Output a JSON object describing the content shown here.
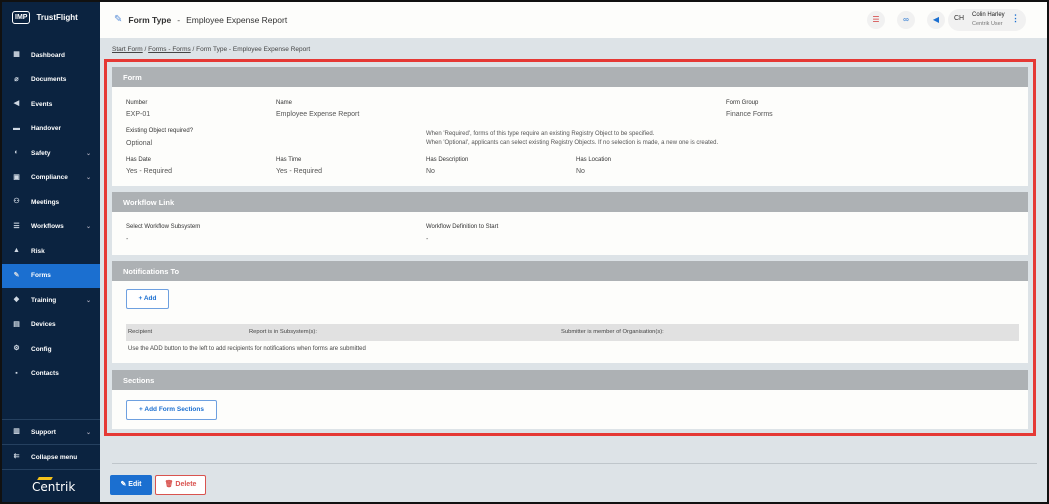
{
  "app": {
    "logo_mark": "IMP",
    "logo_text": "TrustFlight",
    "footer_brand": "Centrik"
  },
  "sidebar": {
    "items": [
      {
        "label": "Dashboard",
        "icon": "dashboard-icon",
        "glyph": "▦"
      },
      {
        "label": "Documents",
        "icon": "paperclip-icon",
        "glyph": "⌀"
      },
      {
        "label": "Events",
        "icon": "megaphone-icon",
        "glyph": "◀"
      },
      {
        "label": "Handover",
        "icon": "handover-icon",
        "glyph": "▬"
      },
      {
        "label": "Safety",
        "icon": "safety-icon",
        "glyph": "◐",
        "chevron": true
      },
      {
        "label": "Compliance",
        "icon": "compliance-icon",
        "glyph": "▣",
        "chevron": true
      },
      {
        "label": "Meetings",
        "icon": "meetings-icon",
        "glyph": "⚇"
      },
      {
        "label": "Workflows",
        "icon": "workflows-icon",
        "glyph": "☰",
        "chevron": true
      },
      {
        "label": "Risk",
        "icon": "risk-icon",
        "glyph": "▲"
      },
      {
        "label": "Forms",
        "icon": "forms-icon",
        "glyph": "✎",
        "active": true
      },
      {
        "label": "Training",
        "icon": "graduation-cap-icon",
        "glyph": "◆",
        "chevron": true
      },
      {
        "label": "Devices",
        "icon": "devices-icon",
        "glyph": "▤"
      },
      {
        "label": "Config",
        "icon": "config-icon",
        "glyph": "⚙"
      },
      {
        "label": "Contacts",
        "icon": "contacts-icon",
        "glyph": "▪"
      }
    ],
    "support": "Support",
    "collapse": "Collapse menu"
  },
  "header": {
    "title_prefix": "Form Type",
    "title_sep": "-",
    "title": "Employee Expense Report",
    "user": {
      "initials": "CH",
      "name": "Colin Harley",
      "role": "Centrik User"
    }
  },
  "breadcrumb": [
    "Start Form",
    "Forms - Forms",
    "Form Type - Employee Expense Report"
  ],
  "form": {
    "heading": "Form",
    "number_label": "Number",
    "number": "EXP-01",
    "name_label": "Name",
    "name": "Employee Expense Report",
    "group_label": "Form Group",
    "group": "Finance Forms",
    "existing_label": "Existing Object required?",
    "existing": "Optional",
    "existing_help1": "When 'Required', forms of this type require an existing Registry Object to be specified.",
    "existing_help2": "When 'Optional', applicants can select existing Registry Objects. If no selection is made, a new one is created.",
    "date_label": "Has Date",
    "date": "Yes - Required",
    "time_label": "Has Time",
    "time": "Yes - Required",
    "desc_label": "Has Description",
    "desc": "No",
    "loc_label": "Has Location",
    "loc": "No"
  },
  "workflow": {
    "heading": "Workflow Link",
    "subsystem_label": "Select Workflow Subsystem",
    "subsystem": "-",
    "definition_label": "Workflow Definition to Start",
    "definition": "-"
  },
  "notifications": {
    "heading": "Notifications To",
    "add": "+ Add",
    "columns": [
      "Recipient",
      "Report is in Subsystem(s):",
      "Submitter is member of Organisation(s):"
    ],
    "empty": "Use the ADD button to the left to add recipients for notifications when forms are submitted"
  },
  "sections": {
    "heading": "Sections",
    "add": "+ Add Form Sections"
  },
  "actions": {
    "edit": "✎ Edit",
    "delete": "🗑 Delete"
  }
}
